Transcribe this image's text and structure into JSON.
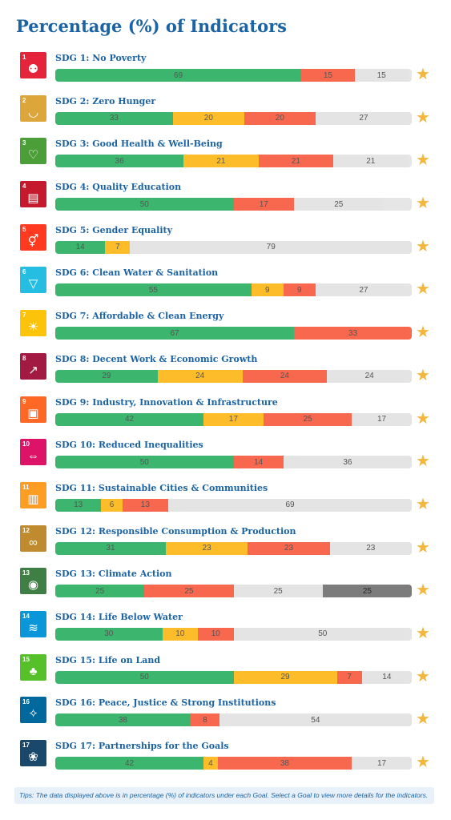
{
  "title": "Percentage (%) of Indicators",
  "tips": "Tips: The data displayed above is in percentage (%) of indicators under each Goal. Select a Goal to view more details for the indicators.",
  "segment_colors": [
    "#3cb66e",
    "#fdbd2b",
    "#f8684f",
    "#e4e4e4",
    "#7c7c7c"
  ],
  "star_color": "#f4b63c",
  "chart_data": {
    "type": "bar",
    "stacked": true,
    "orientation": "horizontal",
    "xlim": [
      0,
      100
    ],
    "categories": [
      "SDG 1: No Poverty",
      "SDG 2: Zero Hunger",
      "SDG 3: Good Health & Well-Being",
      "SDG 4: Quality Education",
      "SDG 5: Gender Equality",
      "SDG 6: Clean Water & Sanitation",
      "SDG 7: Affordable & Clean Energy",
      "SDG 8: Decent Work & Economic Growth",
      "SDG 9: Industry, Innovation & Infrastructure",
      "SDG 10: Reduced Inequalities",
      "SDG 11: Sustainable Cities & Communities",
      "SDG 12: Responsible Consumption & Production",
      "SDG 13: Climate Action",
      "SDG 14: Life Below Water",
      "SDG 15: Life on Land",
      "SDG 16: Peace, Justice & Strong Institutions",
      "SDG 17: Partnerships for the Goals"
    ],
    "series": [
      {
        "color": "#3cb66e",
        "values": [
          69,
          33,
          36,
          50,
          14,
          55,
          67,
          29,
          42,
          50,
          13,
          31,
          25,
          30,
          50,
          38,
          42
        ]
      },
      {
        "color": "#fdbd2b",
        "values": [
          0,
          20,
          21,
          0,
          7,
          9,
          0,
          24,
          17,
          0,
          6,
          23,
          0,
          10,
          29,
          0,
          4
        ]
      },
      {
        "color": "#f8684f",
        "values": [
          15,
          20,
          21,
          17,
          0,
          9,
          33,
          24,
          25,
          14,
          13,
          23,
          25,
          10,
          7,
          8,
          38
        ]
      },
      {
        "color": "#e4e4e4",
        "values": [
          15,
          27,
          21,
          25,
          79,
          27,
          0,
          24,
          17,
          36,
          69,
          23,
          25,
          50,
          14,
          54,
          17
        ]
      },
      {
        "color": "#7c7c7c",
        "values": [
          0,
          0,
          0,
          0,
          0,
          0,
          0,
          0,
          0,
          0,
          0,
          0,
          25,
          0,
          0,
          0,
          0
        ]
      }
    ]
  },
  "goals": [
    {
      "number": "1",
      "icon": "family-icon",
      "color": "#e5243b"
    },
    {
      "number": "2",
      "icon": "bowl-icon",
      "color": "#dda63a"
    },
    {
      "number": "3",
      "icon": "heartbeat-icon",
      "color": "#4c9f38"
    },
    {
      "number": "4",
      "icon": "book-icon",
      "color": "#c5192d"
    },
    {
      "number": "5",
      "icon": "gender-icon",
      "color": "#ff3a21"
    },
    {
      "number": "6",
      "icon": "water-drop-icon",
      "color": "#26bde2"
    },
    {
      "number": "7",
      "icon": "sun-icon",
      "color": "#fcc30b"
    },
    {
      "number": "8",
      "icon": "growth-chart-icon",
      "color": "#a21942"
    },
    {
      "number": "9",
      "icon": "cubes-icon",
      "color": "#fd6925"
    },
    {
      "number": "10",
      "icon": "equality-icon",
      "color": "#dd1367"
    },
    {
      "number": "11",
      "icon": "city-icon",
      "color": "#fd9d24"
    },
    {
      "number": "12",
      "icon": "infinity-icon",
      "color": "#bf8b2e"
    },
    {
      "number": "13",
      "icon": "eye-globe-icon",
      "color": "#3f7e44"
    },
    {
      "number": "14",
      "icon": "fish-icon",
      "color": "#0a97d9"
    },
    {
      "number": "15",
      "icon": "tree-icon",
      "color": "#56c02b"
    },
    {
      "number": "16",
      "icon": "dove-icon",
      "color": "#00689d"
    },
    {
      "number": "17",
      "icon": "flower-icon",
      "color": "#19486a"
    }
  ]
}
